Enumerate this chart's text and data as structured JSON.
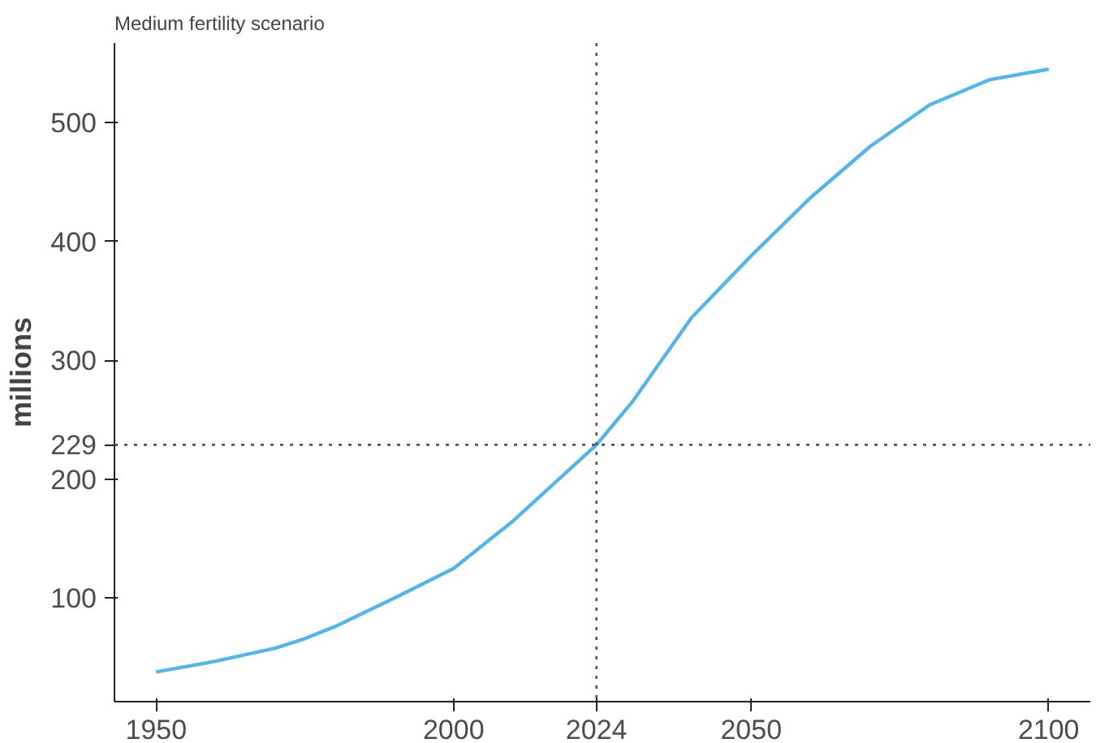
{
  "chart_data": {
    "type": "line",
    "title": "Medium fertility scenario",
    "ylabel": "millions",
    "x": [
      1950,
      1960,
      1970,
      1975,
      1980,
      1990,
      2000,
      2010,
      2024,
      2030,
      2040,
      2050,
      2060,
      2070,
      2080,
      2090,
      2100
    ],
    "series": [
      {
        "color": "#56b4e9",
        "values": [
          38,
          47,
          58,
          66,
          76,
          100,
          125,
          165,
          229,
          265,
          336,
          388,
          437,
          480,
          515,
          536,
          545
        ]
      }
    ],
    "xlim": [
      1943,
      2107
    ],
    "ylim": [
      13,
      567
    ],
    "xticks": [
      1950,
      2000,
      2024,
      2050,
      2100
    ],
    "yticks": [
      100,
      200,
      229,
      300,
      400,
      500
    ],
    "ref_lines": [
      {
        "axis": "x",
        "value": 2024,
        "color": "#555555",
        "line_style": "dotted"
      },
      {
        "axis": "y",
        "value": 229,
        "color": "#555555",
        "line_style": "dotted"
      }
    ],
    "grid": false,
    "marker": "none",
    "line_style": "solid"
  }
}
